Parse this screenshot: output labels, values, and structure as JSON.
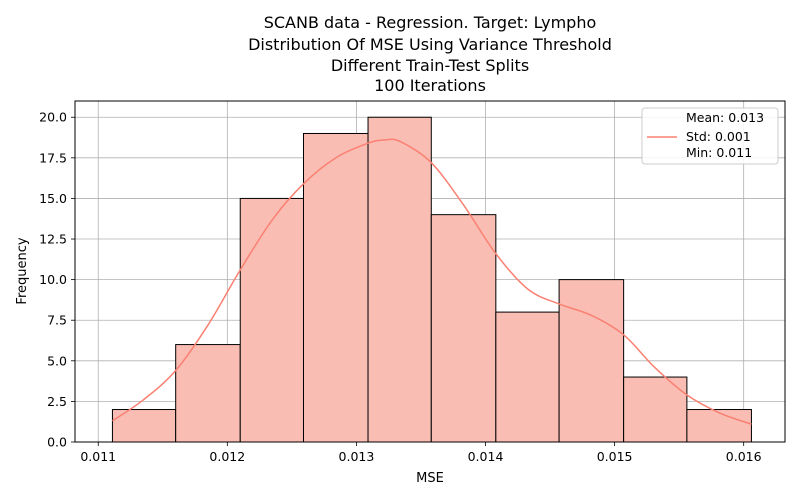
{
  "chart_data": {
    "type": "bar",
    "title_lines": [
      "SCANB data - Regression. Target: Lympho",
      "Distribution Of MSE Using Variance Threshold",
      "Different Train-Test Splits",
      "100 Iterations"
    ],
    "xlabel": "MSE",
    "ylabel": "Frequency",
    "xlim": [
      0.01082,
      0.01632
    ],
    "ylim": [
      0,
      21
    ],
    "xticks": [
      0.011,
      0.012,
      0.013,
      0.014,
      0.015,
      0.016
    ],
    "xtick_labels": [
      "0.011",
      "0.012",
      "0.013",
      "0.014",
      "0.015",
      "0.016"
    ],
    "yticks": [
      0,
      2.5,
      5,
      7.5,
      10,
      12.5,
      15,
      17.5,
      20
    ],
    "ytick_labels": [
      "0.0",
      "2.5",
      "5.0",
      "7.5",
      "10.0",
      "12.5",
      "15.0",
      "17.5",
      "20.0"
    ],
    "grid": true,
    "legend_position": "top-right",
    "bins": [
      {
        "x0": 0.01111,
        "x1": 0.0116,
        "count": 2
      },
      {
        "x0": 0.0116,
        "x1": 0.0121,
        "count": 6
      },
      {
        "x0": 0.0121,
        "x1": 0.01259,
        "count": 15
      },
      {
        "x0": 0.01259,
        "x1": 0.01309,
        "count": 19
      },
      {
        "x0": 0.01309,
        "x1": 0.01358,
        "count": 20
      },
      {
        "x0": 0.01358,
        "x1": 0.01408,
        "count": 14
      },
      {
        "x0": 0.01408,
        "x1": 0.01457,
        "count": 8
      },
      {
        "x0": 0.01457,
        "x1": 0.01507,
        "count": 10
      },
      {
        "x0": 0.01507,
        "x1": 0.01556,
        "count": 4
      },
      {
        "x0": 0.01556,
        "x1": 0.01606,
        "count": 2
      }
    ],
    "kde": {
      "x": [
        0.01111,
        0.01135,
        0.0116,
        0.01185,
        0.0121,
        0.01235,
        0.01259,
        0.01284,
        0.01309,
        0.01322,
        0.01334,
        0.01358,
        0.01383,
        0.01408,
        0.01433,
        0.01457,
        0.01482,
        0.01507,
        0.01531,
        0.01556,
        0.01581,
        0.01606
      ],
      "y": [
        1.3,
        2.6,
        4.4,
        7.2,
        10.6,
        13.7,
        15.9,
        17.5,
        18.4,
        18.6,
        18.5,
        17.2,
        14.6,
        11.6,
        9.4,
        8.5,
        7.8,
        6.6,
        4.6,
        2.9,
        1.8,
        1.1
      ]
    },
    "legend": {
      "entries": [
        "Mean: 0.013",
        "Std: 0.001",
        "Min: 0.011"
      ]
    },
    "colors": {
      "bar_fill": "#fabdb4",
      "bar_edge": "#000000",
      "kde_line": "#fa8072",
      "grid": "#b0b0b0"
    }
  }
}
